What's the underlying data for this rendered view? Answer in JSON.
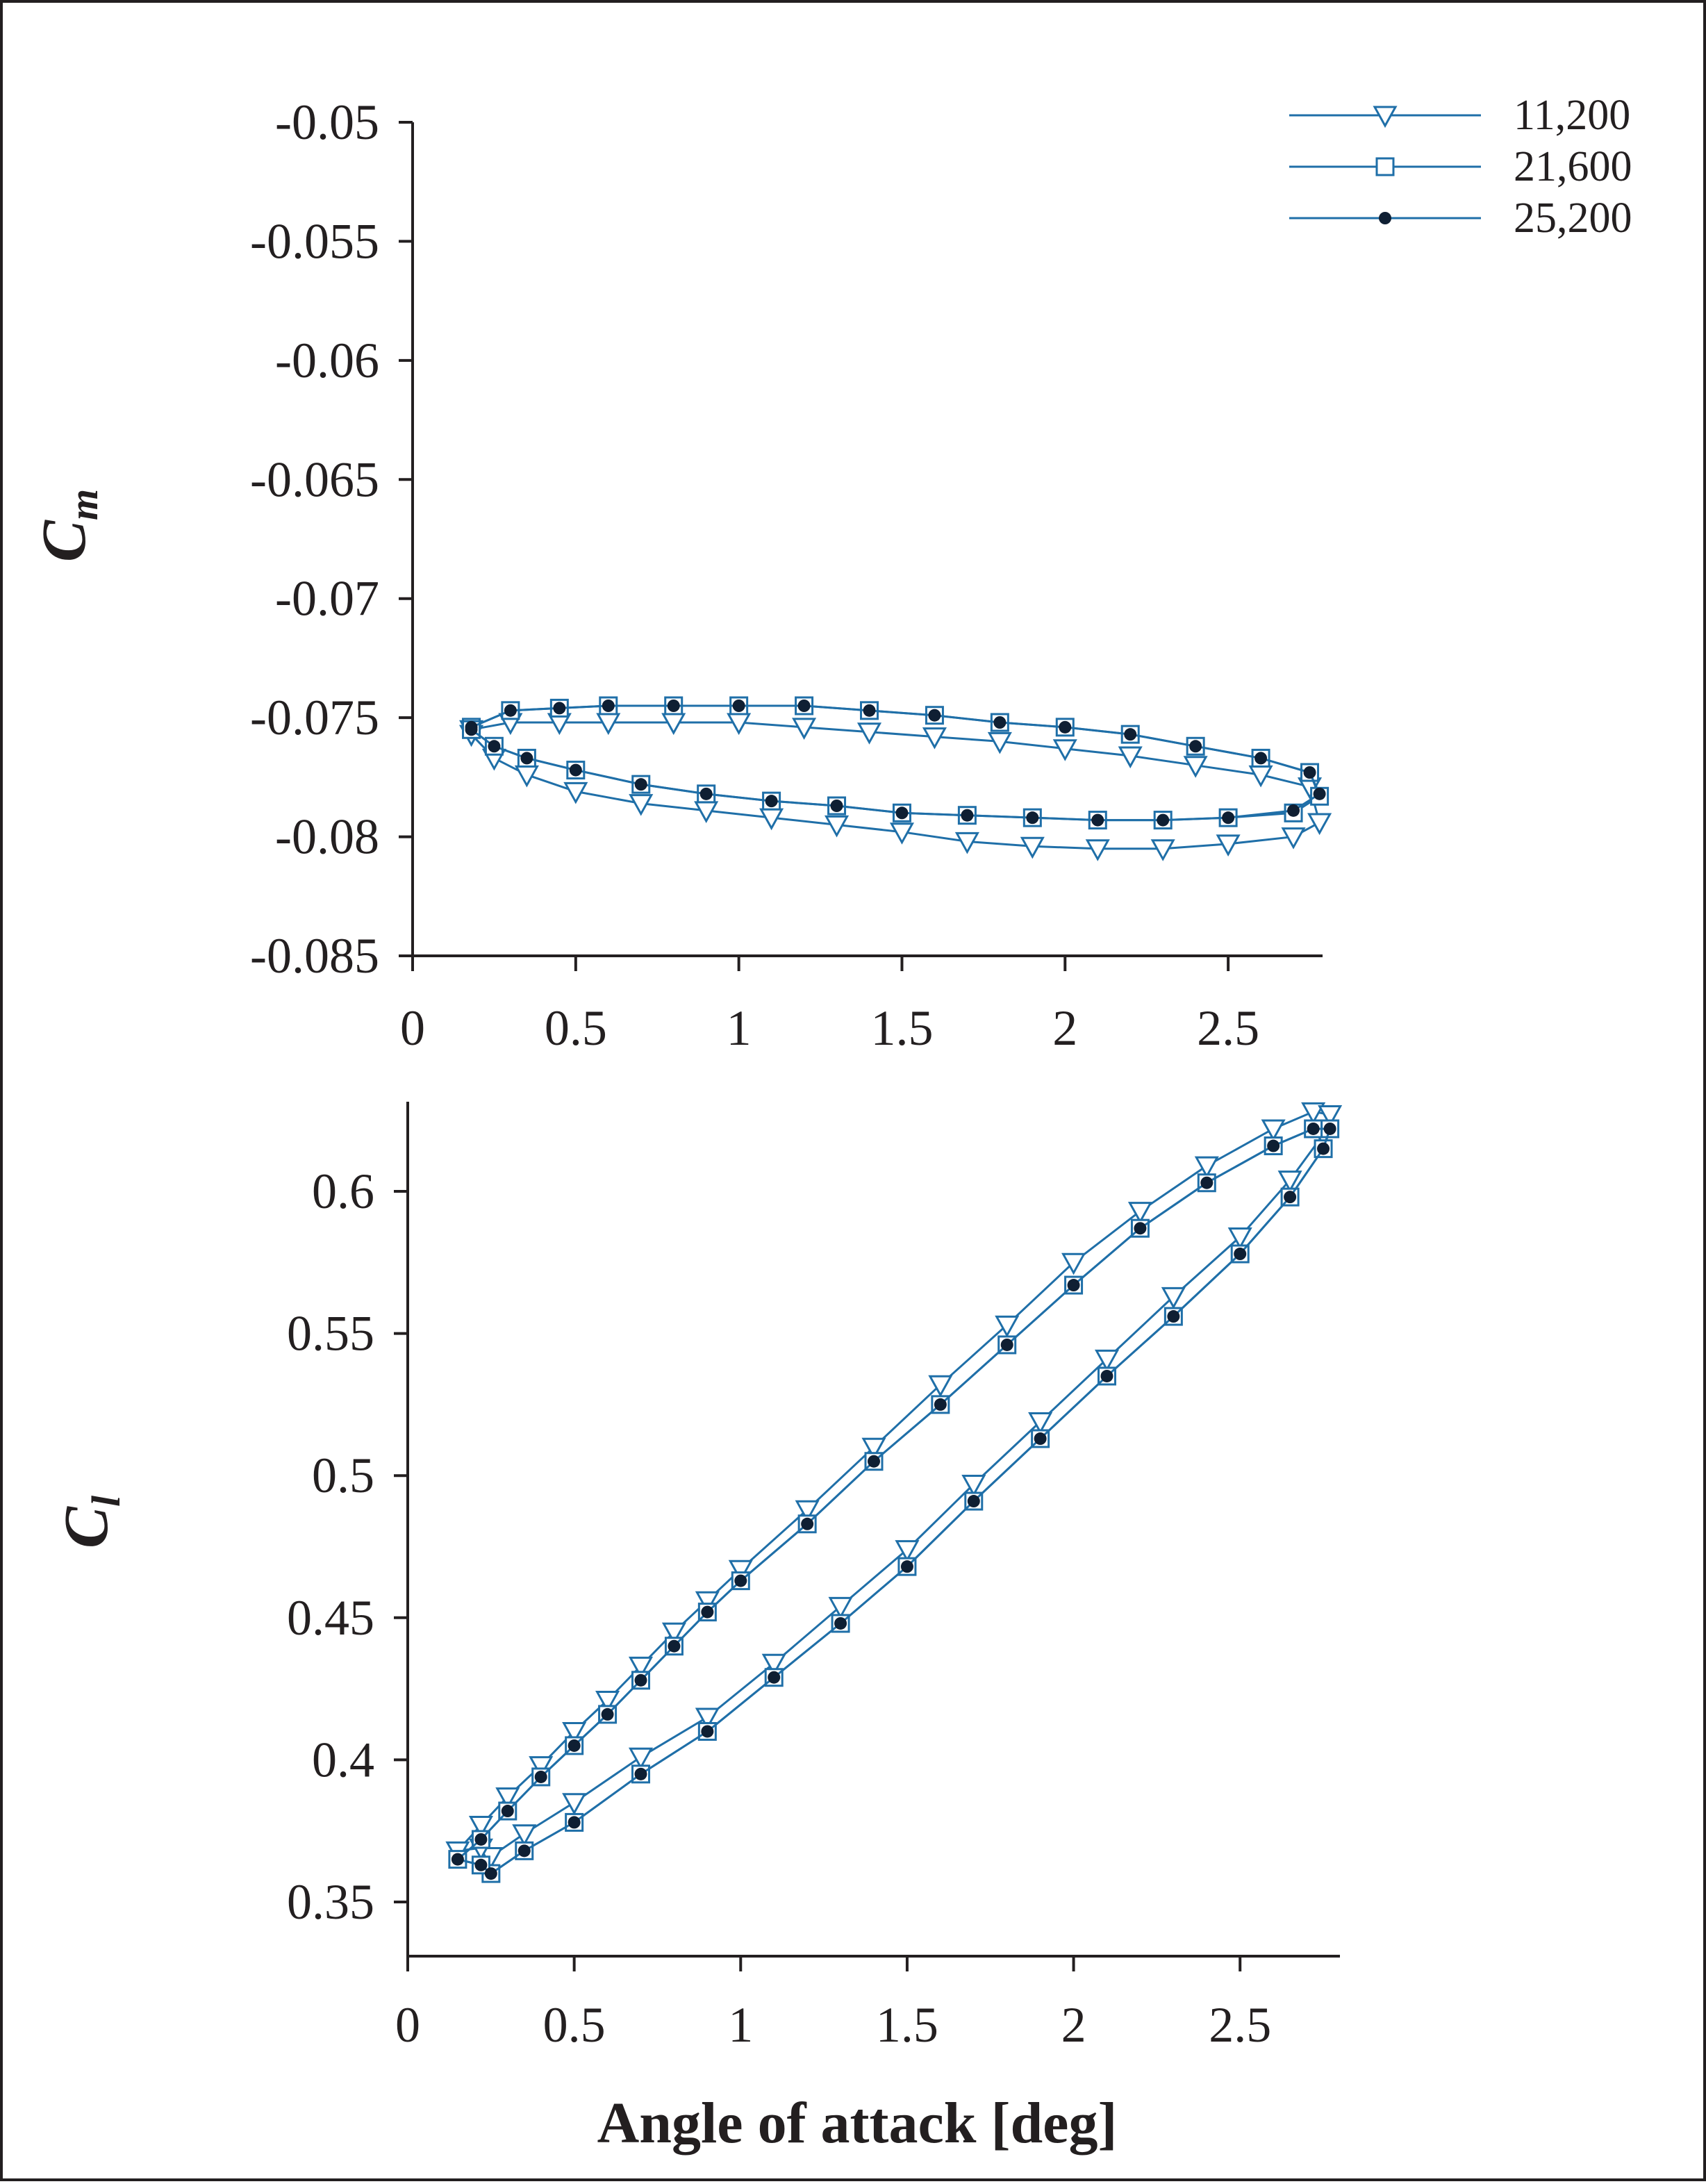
{
  "colors": {
    "series_line": "#1f6fa8",
    "axis": "#231f20",
    "dot_fill": "#0f1f33",
    "background": "#ffffff"
  },
  "legend": {
    "entries": [
      {
        "label": "11,200",
        "marker": "triangle-down-open"
      },
      {
        "label": "21,600",
        "marker": "square-open"
      },
      {
        "label": "25,200",
        "marker": "circle-filled"
      }
    ],
    "placement": "top-right"
  },
  "chart_data": [
    {
      "type": "line",
      "panel": "top",
      "ylabel_main": "C",
      "ylabel_sub": "m",
      "xlabel": "",
      "xlim": [
        0,
        2.8
      ],
      "ylim": [
        -0.085,
        -0.05
      ],
      "xticks": [
        "0",
        "0.5",
        "1",
        "1.5",
        "2",
        "2.5"
      ],
      "yticks": [
        "-0.05",
        "-0.055",
        "-0.06",
        "-0.065",
        "-0.07",
        "-0.075",
        "-0.08",
        "-0.085"
      ],
      "grid": false,
      "loop_note": "closed hysteresis loop; upper branch then lower branch",
      "series": [
        {
          "name": "11,200",
          "marker": "triangle-down-open",
          "x": [
            0.18,
            0.3,
            0.45,
            0.6,
            0.8,
            1.0,
            1.2,
            1.4,
            1.6,
            1.8,
            2.0,
            2.2,
            2.4,
            2.6,
            2.75,
            2.78,
            2.7,
            2.5,
            2.3,
            2.1,
            1.9,
            1.7,
            1.5,
            1.3,
            1.1,
            0.9,
            0.7,
            0.5,
            0.35,
            0.25,
            0.18
          ],
          "y": [
            -0.0755,
            -0.0752,
            -0.0752,
            -0.0752,
            -0.0752,
            -0.0752,
            -0.0754,
            -0.0756,
            -0.0758,
            -0.076,
            -0.0763,
            -0.0766,
            -0.077,
            -0.0774,
            -0.0779,
            -0.0794,
            -0.08,
            -0.0803,
            -0.0805,
            -0.0805,
            -0.0804,
            -0.0802,
            -0.0798,
            -0.0795,
            -0.0792,
            -0.0789,
            -0.0786,
            -0.0781,
            -0.0774,
            -0.0767,
            -0.0757
          ]
        },
        {
          "name": "21,600",
          "marker": "square-open",
          "x": [
            0.18,
            0.3,
            0.45,
            0.6,
            0.8,
            1.0,
            1.2,
            1.4,
            1.6,
            1.8,
            2.0,
            2.2,
            2.4,
            2.6,
            2.75,
            2.78,
            2.7,
            2.5,
            2.3,
            2.1,
            1.9,
            1.7,
            1.5,
            1.3,
            1.1,
            0.9,
            0.7,
            0.5,
            0.35,
            0.25,
            0.18
          ],
          "y": [
            -0.0754,
            -0.0747,
            -0.0746,
            -0.0745,
            -0.0745,
            -0.0745,
            -0.0745,
            -0.0747,
            -0.0749,
            -0.0752,
            -0.0754,
            -0.0757,
            -0.0762,
            -0.0767,
            -0.0773,
            -0.0783,
            -0.079,
            -0.0792,
            -0.0793,
            -0.0793,
            -0.0792,
            -0.0791,
            -0.079,
            -0.0787,
            -0.0785,
            -0.0782,
            -0.0778,
            -0.0772,
            -0.0767,
            -0.0762,
            -0.0755
          ]
        },
        {
          "name": "25,200",
          "marker": "circle-filled",
          "x": [
            0.18,
            0.3,
            0.45,
            0.6,
            0.8,
            1.0,
            1.2,
            1.4,
            1.6,
            1.8,
            2.0,
            2.2,
            2.4,
            2.6,
            2.75,
            2.78,
            2.7,
            2.5,
            2.3,
            2.1,
            1.9,
            1.7,
            1.5,
            1.3,
            1.1,
            0.9,
            0.7,
            0.5,
            0.35,
            0.25,
            0.18
          ],
          "y": [
            -0.0754,
            -0.0747,
            -0.0746,
            -0.0745,
            -0.0745,
            -0.0745,
            -0.0745,
            -0.0747,
            -0.0749,
            -0.0752,
            -0.0754,
            -0.0757,
            -0.0762,
            -0.0767,
            -0.0773,
            -0.0782,
            -0.0789,
            -0.0792,
            -0.0793,
            -0.0793,
            -0.0792,
            -0.0791,
            -0.079,
            -0.0787,
            -0.0785,
            -0.0782,
            -0.0778,
            -0.0772,
            -0.0767,
            -0.0762,
            -0.0755
          ]
        }
      ]
    },
    {
      "type": "line",
      "panel": "bottom",
      "ylabel_main": "C",
      "ylabel_sub": "l",
      "xlabel": "Angle of attack [deg]",
      "xlim": [
        0,
        2.8
      ],
      "ylim": [
        0.33,
        0.63
      ],
      "xticks": [
        "0",
        "0.5",
        "1",
        "1.5",
        "2",
        "2.5"
      ],
      "yticks": [
        "0.35",
        "0.4",
        "0.45",
        "0.5",
        "0.55",
        "0.6"
      ],
      "grid": false,
      "loop_note": "closed hysteresis loop; upper branch then lower branch",
      "series": [
        {
          "name": "11,200",
          "marker": "triangle-down-open",
          "x": [
            0.15,
            0.22,
            0.3,
            0.4,
            0.5,
            0.6,
            0.7,
            0.8,
            0.9,
            1.0,
            1.2,
            1.4,
            1.6,
            1.8,
            2.0,
            2.2,
            2.4,
            2.6,
            2.72,
            2.77,
            2.75,
            2.65,
            2.5,
            2.3,
            2.1,
            1.9,
            1.7,
            1.5,
            1.3,
            1.1,
            0.9,
            0.7,
            0.5,
            0.35,
            0.25,
            0.22
          ],
          "y": [
            0.368,
            0.377,
            0.387,
            0.398,
            0.41,
            0.421,
            0.433,
            0.445,
            0.456,
            0.467,
            0.488,
            0.51,
            0.532,
            0.553,
            0.575,
            0.593,
            0.609,
            0.622,
            0.628,
            0.627,
            0.62,
            0.604,
            0.584,
            0.563,
            0.541,
            0.519,
            0.497,
            0.474,
            0.454,
            0.434,
            0.415,
            0.401,
            0.385,
            0.374,
            0.366,
            0.369
          ]
        },
        {
          "name": "21,600",
          "marker": "square-open",
          "x": [
            0.15,
            0.22,
            0.3,
            0.4,
            0.5,
            0.6,
            0.7,
            0.8,
            0.9,
            1.0,
            1.2,
            1.4,
            1.6,
            1.8,
            2.0,
            2.2,
            2.4,
            2.6,
            2.72,
            2.77,
            2.75,
            2.65,
            2.5,
            2.3,
            2.1,
            1.9,
            1.7,
            1.5,
            1.3,
            1.1,
            0.9,
            0.7,
            0.5,
            0.35,
            0.25,
            0.22
          ],
          "y": [
            0.365,
            0.372,
            0.382,
            0.394,
            0.405,
            0.416,
            0.428,
            0.44,
            0.452,
            0.463,
            0.483,
            0.505,
            0.525,
            0.546,
            0.567,
            0.587,
            0.603,
            0.616,
            0.622,
            0.622,
            0.615,
            0.598,
            0.578,
            0.556,
            0.535,
            0.513,
            0.491,
            0.468,
            0.448,
            0.429,
            0.41,
            0.395,
            0.378,
            0.368,
            0.36,
            0.363
          ]
        },
        {
          "name": "25,200",
          "marker": "circle-filled",
          "x": [
            0.15,
            0.22,
            0.3,
            0.4,
            0.5,
            0.6,
            0.7,
            0.8,
            0.9,
            1.0,
            1.2,
            1.4,
            1.6,
            1.8,
            2.0,
            2.2,
            2.4,
            2.6,
            2.72,
            2.77,
            2.75,
            2.65,
            2.5,
            2.3,
            2.1,
            1.9,
            1.7,
            1.5,
            1.3,
            1.1,
            0.9,
            0.7,
            0.5,
            0.35,
            0.25,
            0.22
          ],
          "y": [
            0.365,
            0.372,
            0.382,
            0.394,
            0.405,
            0.416,
            0.428,
            0.44,
            0.452,
            0.463,
            0.483,
            0.505,
            0.525,
            0.546,
            0.567,
            0.587,
            0.603,
            0.616,
            0.622,
            0.622,
            0.615,
            0.598,
            0.578,
            0.556,
            0.535,
            0.513,
            0.491,
            0.468,
            0.448,
            0.429,
            0.41,
            0.395,
            0.378,
            0.368,
            0.36,
            0.363
          ]
        }
      ]
    }
  ]
}
